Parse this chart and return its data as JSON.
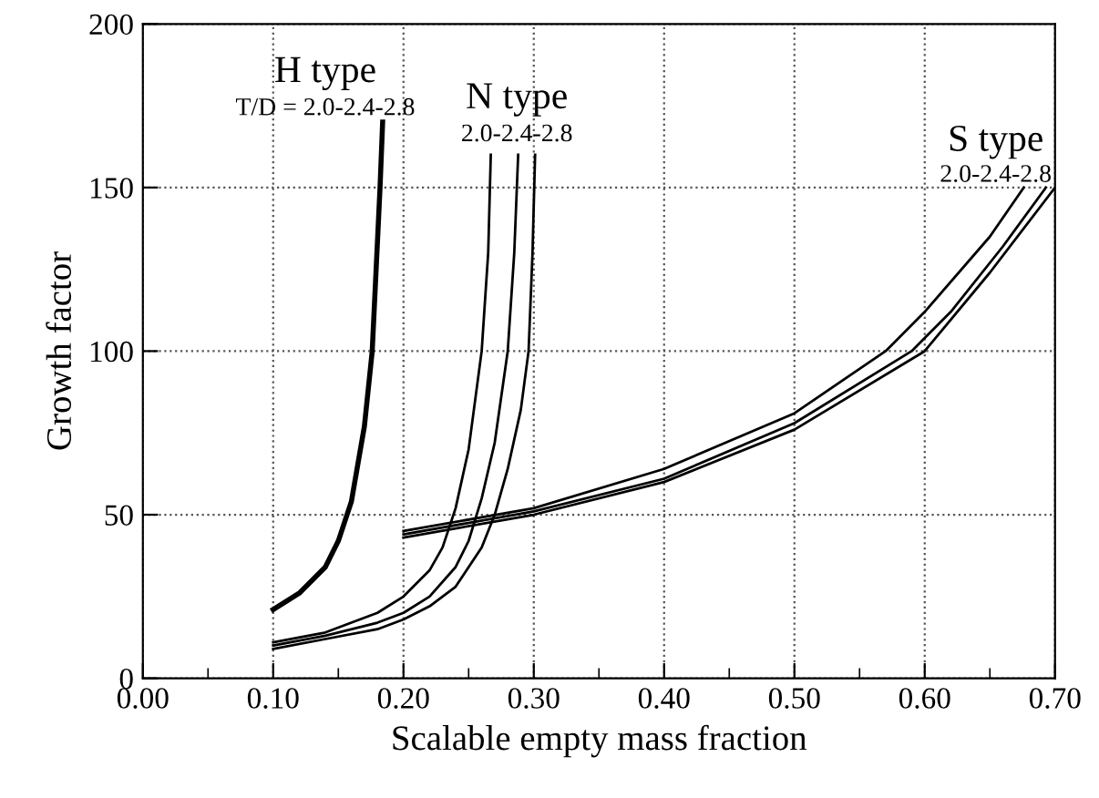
{
  "chart_data": {
    "type": "line",
    "xlabel": "Scalable empty mass fraction",
    "ylabel": "Growth factor",
    "xlim": [
      0,
      0.7
    ],
    "ylim": [
      0,
      200
    ],
    "xticks": [
      {
        "value": 0,
        "label": "0.00"
      },
      {
        "value": 0.05,
        "label": null
      },
      {
        "value": 0.1,
        "label": "0.10"
      },
      {
        "value": 0.15,
        "label": null
      },
      {
        "value": 0.2,
        "label": "0.20"
      },
      {
        "value": 0.25,
        "label": null
      },
      {
        "value": 0.3,
        "label": "0.30"
      },
      {
        "value": 0.35,
        "label": null
      },
      {
        "value": 0.4,
        "label": "0.40"
      },
      {
        "value": 0.45,
        "label": null
      },
      {
        "value": 0.5,
        "label": "0.50"
      },
      {
        "value": 0.55,
        "label": null
      },
      {
        "value": 0.6,
        "label": "0.60"
      },
      {
        "value": 0.65,
        "label": null
      },
      {
        "value": 0.7,
        "label": "0.70"
      }
    ],
    "yticks": [
      0,
      50,
      100,
      150,
      200
    ],
    "grid": true,
    "marker": "none",
    "line_style": "solid",
    "series": [
      {
        "color": "#000000",
        "x": [
          0.1,
          0.12,
          0.14,
          0.15,
          0.16,
          0.17,
          0.176,
          0.179,
          0.182,
          0.184
        ],
        "values": [
          21,
          26,
          34,
          42,
          54,
          77,
          100,
          125,
          150,
          170
        ]
      },
      {
        "color": "#000000",
        "x": [
          0.1,
          0.14,
          0.18,
          0.2,
          0.22,
          0.23,
          0.24,
          0.25,
          0.26,
          0.265,
          0.267
        ],
        "values": [
          11,
          14,
          20,
          25,
          33,
          40,
          52,
          70,
          100,
          130,
          160
        ]
      },
      {
        "color": "#000000",
        "x": [
          0.1,
          0.14,
          0.18,
          0.2,
          0.22,
          0.24,
          0.25,
          0.26,
          0.27,
          0.28,
          0.285,
          0.288
        ],
        "values": [
          10,
          13,
          17,
          20,
          25,
          34,
          42,
          55,
          72,
          100,
          130,
          160
        ]
      },
      {
        "color": "#000000",
        "x": [
          0.1,
          0.14,
          0.18,
          0.2,
          0.22,
          0.24,
          0.26,
          0.27,
          0.28,
          0.29,
          0.296,
          0.299,
          0.301
        ],
        "values": [
          9,
          12,
          15,
          18,
          22,
          28,
          40,
          50,
          64,
          82,
          100,
          130,
          160
        ]
      },
      {
        "color": "#000000",
        "x": [
          0.2,
          0.3,
          0.4,
          0.5,
          0.57,
          0.6,
          0.65,
          0.676
        ],
        "values": [
          45,
          52,
          64,
          81,
          100,
          112,
          135,
          150
        ]
      },
      {
        "color": "#000000",
        "x": [
          0.2,
          0.3,
          0.4,
          0.5,
          0.59,
          0.62,
          0.66,
          0.693
        ],
        "values": [
          44,
          51,
          61,
          78,
          100,
          112,
          132,
          150
        ]
      },
      {
        "color": "#000000",
        "x": [
          0.2,
          0.3,
          0.4,
          0.5,
          0.6,
          0.65,
          0.7
        ],
        "values": [
          43,
          50,
          60,
          76,
          100,
          124,
          150
        ]
      }
    ],
    "annotations": [
      "H type",
      "T/D = 2.0-2.4-2.8",
      "N type",
      "2.0-2.4-2.8",
      "S type",
      "2.0-2.4-2.8"
    ]
  }
}
